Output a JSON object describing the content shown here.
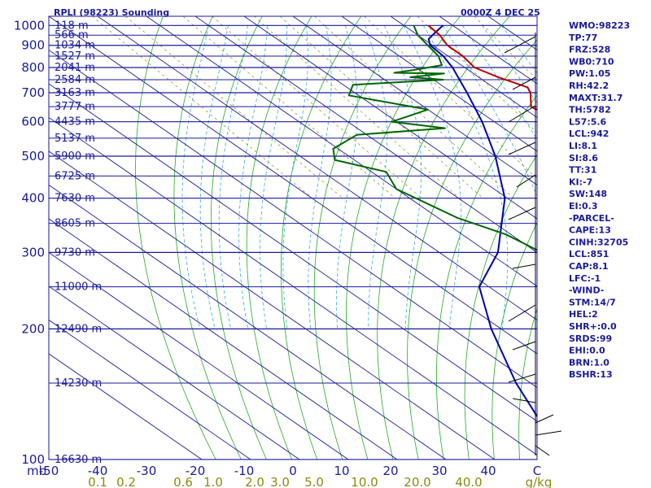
{
  "header": {
    "station": "RPLI (98223) Sounding",
    "time": "0000Z  4 DEC 25"
  },
  "indices": [
    "WMO:98223",
    "TP:77",
    "FRZ:528",
    "WB0:710",
    "PW:1.05",
    "RH:42.2",
    "MAXT:31.7",
    "TH:5782",
    "L57:5.6",
    "LCL:942",
    "LI:8.1",
    "SI:8.6",
    "TT:31",
    "KI:-7",
    "SW:148",
    "EI:0.3",
    "-PARCEL-",
    "CAPE:13",
    "CINH:32705",
    "LCL:851",
    "CAP:8.1",
    "LFC:-1",
    "-WIND-",
    "STM:14/7",
    "HEL:2",
    "SHR+:0.0",
    "SRDS:99",
    "EHI:0.0",
    "BRN:1.0",
    "BSHR:13"
  ],
  "chart_data": {
    "type": "skew-t",
    "title": "RPLI (98223) Sounding",
    "time": "0000Z  4 DEC 25",
    "y_axis_label": "mb",
    "x_axis_unit_label": "C",
    "mixing_ratio_unit": "g/kg",
    "pressure_ticks": [
      100,
      200,
      300,
      400,
      500,
      600,
      700,
      800,
      900,
      1000
    ],
    "height_labels": [
      {
        "p": 100,
        "label": "16630 m"
      },
      {
        "p": 150,
        "label": "14230 m"
      },
      {
        "p": 200,
        "label": "12490 m"
      },
      {
        "p": 250,
        "label": "11000 m"
      },
      {
        "p": 300,
        "label": "9730 m"
      },
      {
        "p": 350,
        "label": "8605 m"
      },
      {
        "p": 400,
        "label": "7630 m"
      },
      {
        "p": 450,
        "label": "6725 m"
      },
      {
        "p": 500,
        "label": "5900 m"
      },
      {
        "p": 550,
        "label": "5137 m"
      },
      {
        "p": 600,
        "label": "4435 m"
      },
      {
        "p": 650,
        "label": "3777 m"
      },
      {
        "p": 700,
        "label": "3163 m"
      },
      {
        "p": 750,
        "label": "2584 m"
      },
      {
        "p": 800,
        "label": "2041 m"
      },
      {
        "p": 850,
        "label": "1527 m"
      },
      {
        "p": 900,
        "label": "1034 m"
      },
      {
        "p": 950,
        "label": "566 m"
      },
      {
        "p": 1000,
        "label": "118 m"
      }
    ],
    "temperature_ticks": [
      "-50",
      "-40",
      "-30",
      "-20",
      "-10",
      "0",
      "10",
      "20",
      "30",
      "40",
      "C"
    ],
    "mixing_ratio_labels": [
      "0.1",
      "0.2",
      "0.6",
      "1.0",
      "2.0",
      "3.0",
      "5.0",
      "10.0",
      "20.0",
      "40.0",
      "g/kg"
    ],
    "temperature_profile": [
      {
        "p": 1000,
        "t": 25.0
      },
      {
        "p": 950,
        "t": 24.5
      },
      {
        "p": 900,
        "t": 23.0
      },
      {
        "p": 850,
        "t": 23.0
      },
      {
        "p": 800,
        "t": 22.0
      },
      {
        "p": 760,
        "t": 24.0
      },
      {
        "p": 720,
        "t": 27.0
      },
      {
        "p": 700,
        "t": 26.0
      },
      {
        "p": 650,
        "t": 22.0
      },
      {
        "p": 615,
        "t": 23.0
      },
      {
        "p": 590,
        "t": 24.0
      },
      {
        "p": 560,
        "t": 22.0
      },
      {
        "p": 500,
        "t": 17.5
      },
      {
        "p": 450,
        "t": 11.5
      },
      {
        "p": 400,
        "t": 5.5
      },
      {
        "p": 350,
        "t": 0.0
      },
      {
        "p": 300,
        "t": -6.5
      },
      {
        "p": 250,
        "t": -16.0
      },
      {
        "p": 200,
        "t": -23.0
      },
      {
        "p": 170,
        "t": -29.0
      },
      {
        "p": 150,
        "t": -33.5
      },
      {
        "p": 130,
        "t": -40.0
      },
      {
        "p": 110,
        "t": -46.0
      },
      {
        "p": 100,
        "t": -49.0
      }
    ],
    "dewpoint_profile": [
      {
        "p": 1000,
        "t": 22.0
      },
      {
        "p": 950,
        "t": 20.0
      },
      {
        "p": 900,
        "t": 19.0
      },
      {
        "p": 850,
        "t": 18.0
      },
      {
        "p": 810,
        "t": 16.0
      },
      {
        "p": 790,
        "t": 9.0
      },
      {
        "p": 778,
        "t": 4.0
      },
      {
        "p": 775,
        "t": 14.0
      },
      {
        "p": 760,
        "t": 6.0
      },
      {
        "p": 750,
        "t": 12.0
      },
      {
        "p": 730,
        "t": -8.0
      },
      {
        "p": 690,
        "t": -12.0
      },
      {
        "p": 640,
        "t": 0.0
      },
      {
        "p": 600,
        "t": -11.0
      },
      {
        "p": 580,
        "t": -2.0
      },
      {
        "p": 560,
        "t": -22.0
      },
      {
        "p": 520,
        "t": -31.0
      },
      {
        "p": 490,
        "t": -34.0
      },
      {
        "p": 460,
        "t": -27.0
      },
      {
        "p": 420,
        "t": -30.0
      },
      {
        "p": 360,
        "t": -26.0
      },
      {
        "p": 330,
        "t": -21.0
      },
      {
        "p": 260,
        "t": -16.0
      },
      {
        "p": 250,
        "t": -23.0
      },
      {
        "p": 220,
        "t": -34.0
      },
      {
        "p": 180,
        "t": -43.0
      },
      {
        "p": 140,
        "t": -51.0
      },
      {
        "p": 120,
        "t": -56.0
      },
      {
        "p": 100,
        "t": -63.0
      }
    ],
    "parcel_profile": [
      {
        "p": 1000,
        "t": 28.0
      },
      {
        "p": 960,
        "t": 24.0
      },
      {
        "p": 930,
        "t": 21.0
      },
      {
        "p": 900,
        "t": 19.5
      },
      {
        "p": 850,
        "t": 19.0
      },
      {
        "p": 800,
        "t": 17.5
      },
      {
        "p": 700,
        "t": 13.0
      },
      {
        "p": 600,
        "t": 7.5
      },
      {
        "p": 500,
        "t": 0.0
      },
      {
        "p": 400,
        "t": -10.5
      },
      {
        "p": 300,
        "t": -28.0
      },
      {
        "p": 250,
        "t": -42.0
      },
      {
        "p": 200,
        "t": -52.0
      },
      {
        "p": 150,
        "t": -63.0
      },
      {
        "p": 120,
        "t": -70.0
      }
    ],
    "colors": {
      "frame": "#1a1a9a",
      "isobar": "#1a1a9a",
      "isotherm": "#1a1a9a",
      "dry_adiabat": "#22aa22",
      "moist_adiabat": "#33aadd",
      "mixing_ratio": "#8a8a10",
      "temperature": "#bb0000",
      "dewpoint": "#006600",
      "parcel": "#0000aa",
      "background": "#ffffff"
    }
  }
}
